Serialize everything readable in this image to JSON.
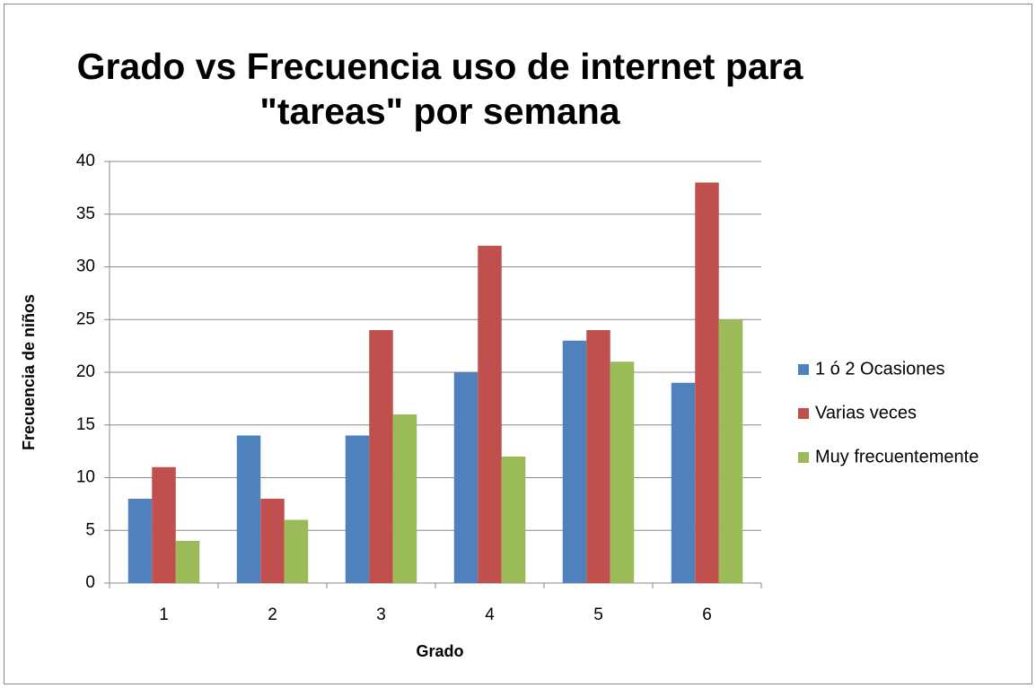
{
  "chart_data": {
    "type": "bar",
    "title": [
      "Grado vs Frecuencia uso de internet para",
      "\"tareas\" por semana"
    ],
    "x_label": "Grado",
    "y_label": "Frecuencia de niños",
    "categories": [
      "1",
      "2",
      "3",
      "4",
      "5",
      "6"
    ],
    "series": [
      {
        "name": "1 ó 2 Ocasiones",
        "color": "#4f81bd",
        "values": [
          8,
          14,
          14,
          20,
          23,
          19
        ]
      },
      {
        "name": "Varias veces",
        "color": "#c0504d",
        "values": [
          11,
          8,
          24,
          32,
          24,
          38
        ]
      },
      {
        "name": "Muy frecuentemente",
        "color": "#9bbb59",
        "values": [
          4,
          6,
          16,
          12,
          21,
          25
        ]
      }
    ],
    "ylim": [
      0,
      40
    ],
    "yticks": [
      0,
      5,
      10,
      15,
      20,
      25,
      30,
      35,
      40
    ],
    "grid": true,
    "legend": "right"
  }
}
